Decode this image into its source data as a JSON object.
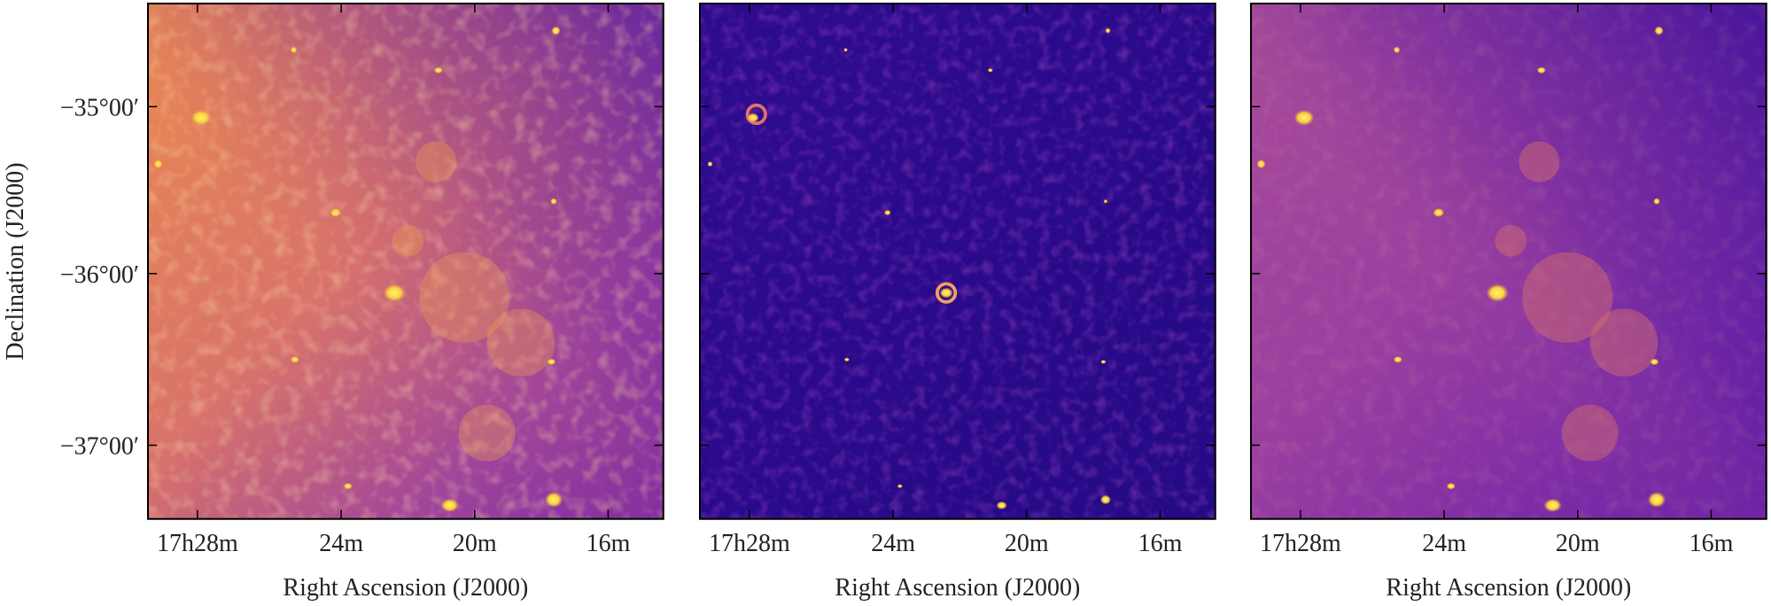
{
  "ylabel": "Declination (J2000)",
  "yticks": [
    "−35°00′",
    "−36°00′",
    "−37°00′"
  ],
  "panels": [
    {
      "xlabel": "Right Ascension (J2000)",
      "xticks": [
        "17h28m",
        "24m",
        "20m",
        "16m"
      ]
    },
    {
      "xlabel": "Right Ascension (J2000)",
      "xticks": [
        "17h28m",
        "24m",
        "20m",
        "16m"
      ]
    },
    {
      "xlabel": "Right Ascension (J2000)",
      "xticks": [
        "17h28m",
        "24m",
        "20m",
        "16m"
      ]
    }
  ]
}
